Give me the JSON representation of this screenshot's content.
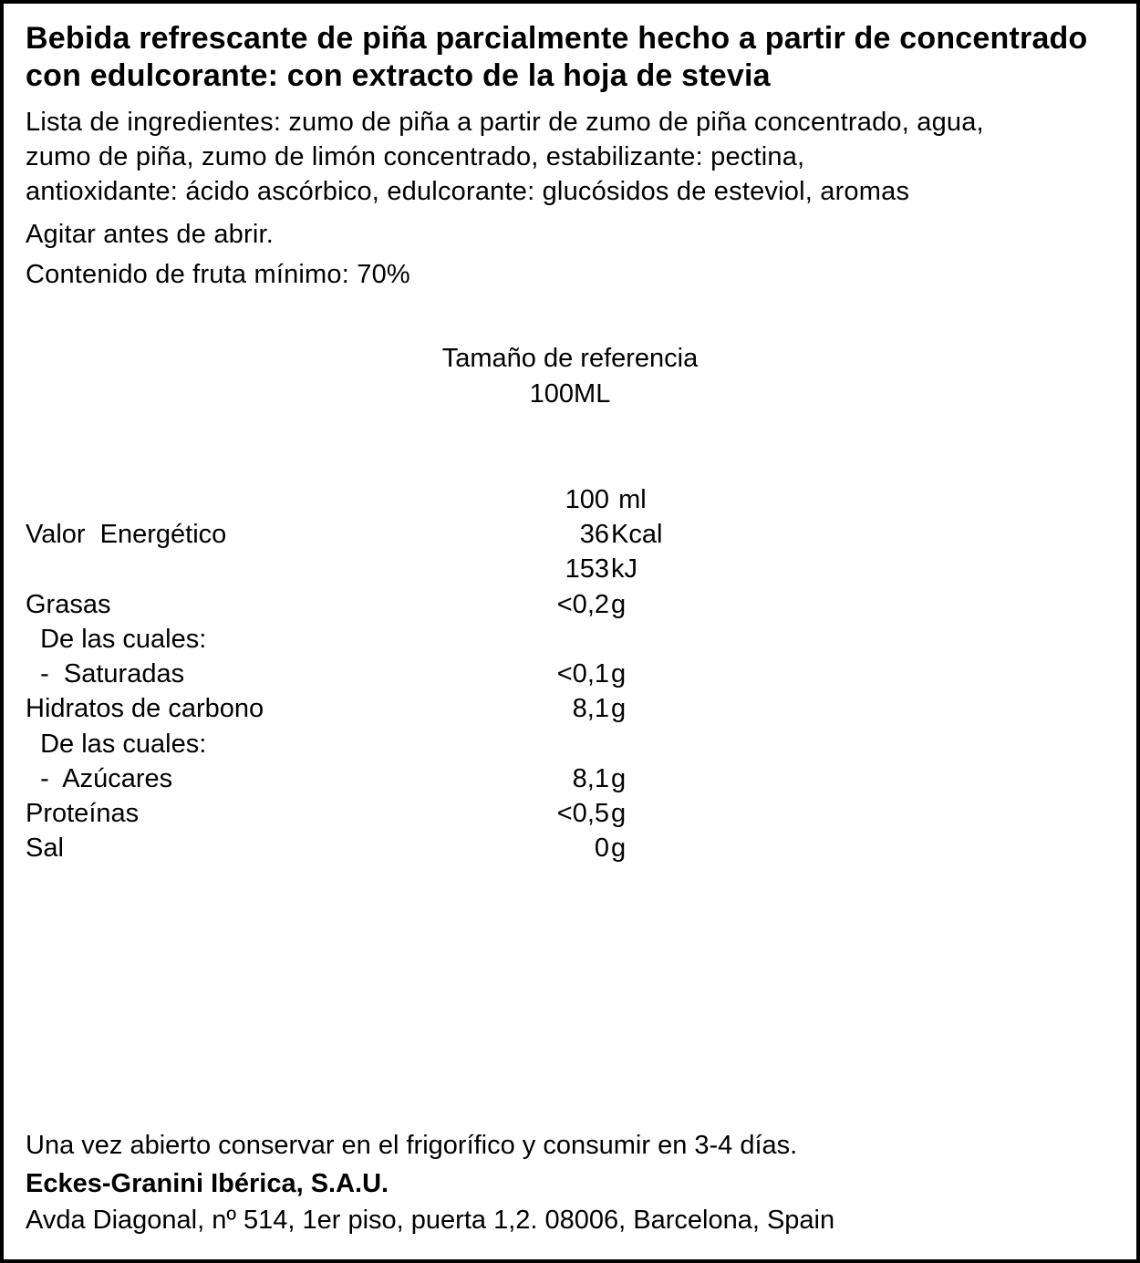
{
  "title": "Bebida refrescante  de piña parcialmente hecho a partir de concentrado con edulcorante: con extracto de la hoja de stevia",
  "ingredients_l1": "Lista de ingredientes: zumo de piña a partir de zumo de piña concentrado, agua,",
  "ingredients_l2": "zumo de piña, zumo de limón concentrado, estabilizante: pectina,",
  "ingredients_l3": "antioxidante: ácido ascórbico, edulcorante: glucósidos de esteviol, aromas",
  "instruction": "Agitar antes de abrir.",
  "fruit_content": "Contenido de fruta mínimo: 70%",
  "reference_label": "Tamaño de referencia",
  "reference_size": "100ML",
  "col_header_val": "100",
  "col_header_unit": "ml",
  "rows": [
    {
      "label": "Valor  Energético",
      "value": "36",
      "unit": "Kcal"
    },
    {
      "label": "",
      "value": "153",
      "unit": "kJ"
    },
    {
      "label": "Grasas",
      "value": "<0,2",
      "unit": "g"
    },
    {
      "label": "  De las cuales:",
      "value": "",
      "unit": ""
    },
    {
      "label": "  -  Saturadas",
      "value": "<0,1",
      "unit": "g"
    },
    {
      "label": "Hidratos de carbono",
      "value": "8,1",
      "unit": "g"
    },
    {
      "label": "  De las cuales:",
      "value": "",
      "unit": ""
    },
    {
      "label": "  -  Azúcares",
      "value": "8,1",
      "unit": "g"
    },
    {
      "label": "Proteínas",
      "value": "<0,5",
      "unit": "g"
    },
    {
      "label": "Sal",
      "value": "0",
      "unit": "g"
    }
  ],
  "storage": "Una vez abierto conservar en el frigorífico y consumir en 3-4 días.",
  "company_name": "Eckes-Granini Ibérica, S.A.U.",
  "company_addr": "Avda Diagonal, nº 514, 1er piso, puerta 1,2. 08006, Barcelona, Spain"
}
